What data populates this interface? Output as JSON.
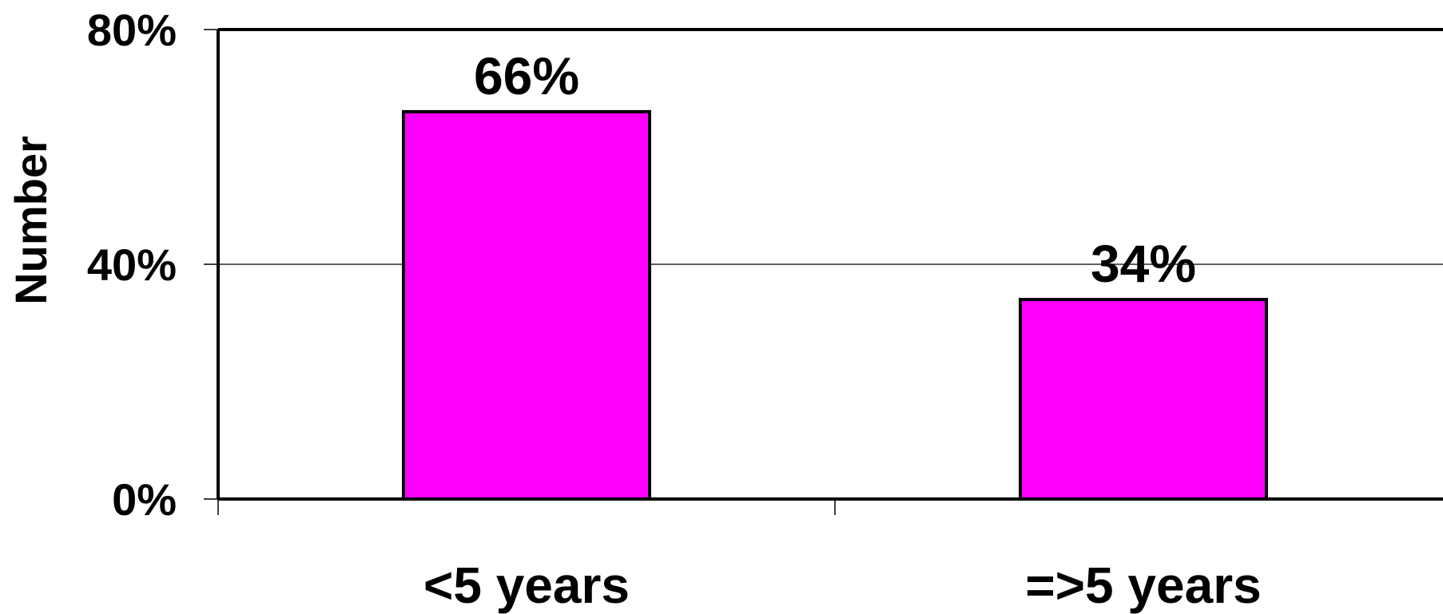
{
  "chart_data": {
    "type": "bar",
    "categories": [
      "<5 years",
      "=>5 years"
    ],
    "values": [
      66,
      34
    ],
    "data_labels": [
      "66%",
      "34%"
    ],
    "ylabel": "Number",
    "ylim": [
      0,
      80
    ],
    "yticks": [
      0,
      40,
      80
    ],
    "ytick_labels": [
      "0%",
      "40%",
      "80%"
    ],
    "grid": true,
    "legend": "none"
  },
  "colors": {
    "bar_fill": "#FF00FF",
    "bar_stroke": "#000000",
    "gridline": "#000000",
    "axis": "#000000"
  }
}
